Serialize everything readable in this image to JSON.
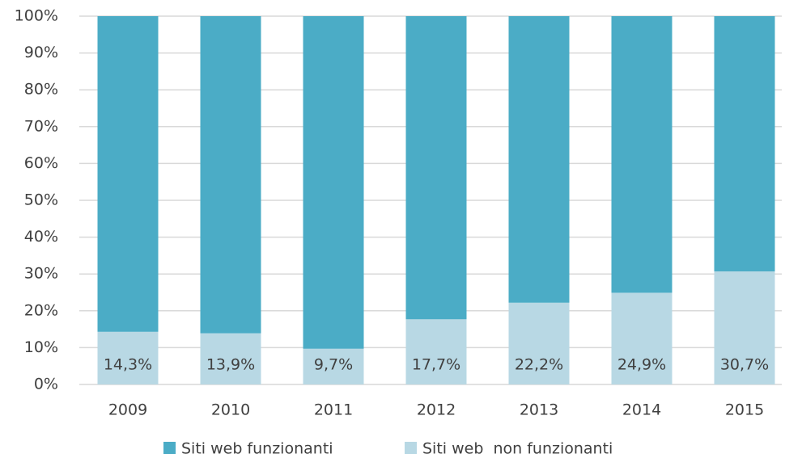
{
  "chart_data": {
    "type": "stacked_bar",
    "categories": [
      "2009",
      "2010",
      "2011",
      "2012",
      "2013",
      "2014",
      "2015"
    ],
    "series": [
      {
        "name": "Siti web funzionanti",
        "color": "#4bacc6",
        "values": [
          85.7,
          86.1,
          90.3,
          82.3,
          77.8,
          75.1,
          69.3
        ]
      },
      {
        "name": "Siti web  non funzionanti",
        "color": "#b8d8e4",
        "values": [
          14.3,
          13.9,
          9.7,
          17.7,
          22.2,
          24.9,
          30.7
        ],
        "value_labels": [
          "14,3%",
          "13,9%",
          "9,7%",
          "17,7%",
          "22,2%",
          "24,9%",
          "30,7%"
        ]
      }
    ],
    "ylim": [
      0,
      100
    ],
    "yticks": [
      {
        "value": 0,
        "label": "0%"
      },
      {
        "value": 10,
        "label": "10%"
      },
      {
        "value": 20,
        "label": "20%"
      },
      {
        "value": 30,
        "label": "30%"
      },
      {
        "value": 40,
        "label": "40%"
      },
      {
        "value": 50,
        "label": "50%"
      },
      {
        "value": 60,
        "label": "60%"
      },
      {
        "value": 70,
        "label": "70%"
      },
      {
        "value": 80,
        "label": "80%"
      },
      {
        "value": 90,
        "label": "90%"
      },
      {
        "value": 100,
        "label": "100%"
      }
    ],
    "grid": true,
    "legend": "bottom"
  }
}
